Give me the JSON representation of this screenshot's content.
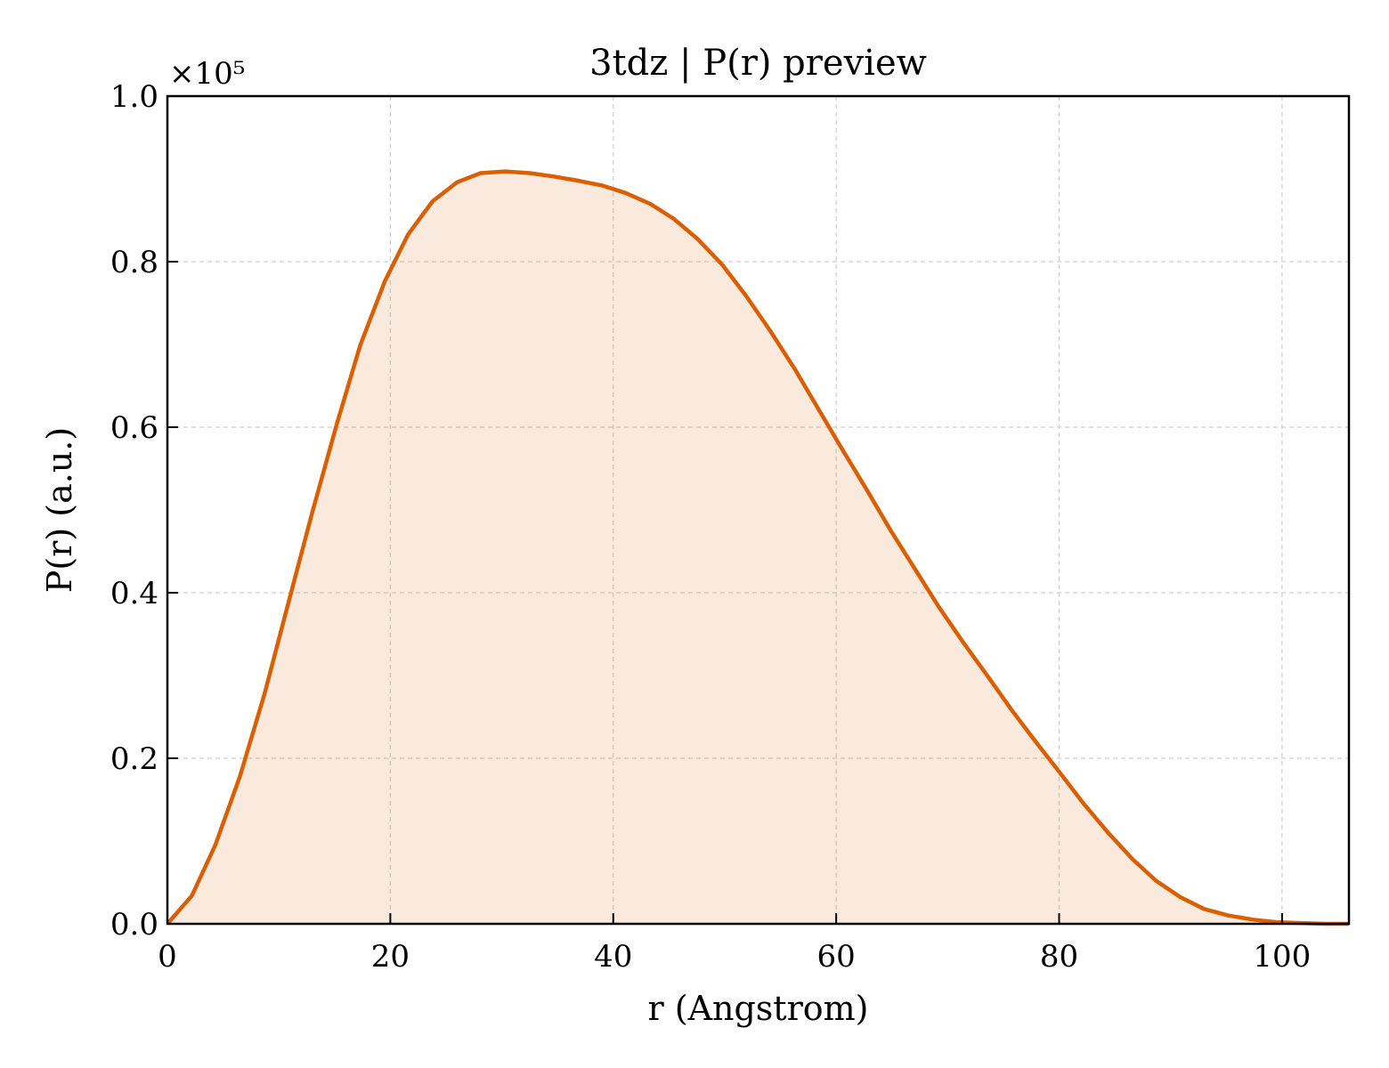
{
  "chart_data": {
    "type": "area",
    "title": "3tdz | P(r) preview",
    "xlabel": "r (Angstrom)",
    "ylabel": "P(r) (a.u.)",
    "y_offset_label": "×10⁵",
    "xlim": [
      0,
      106
    ],
    "ylim": [
      0,
      1.0
    ],
    "xticks": [
      0,
      20,
      40,
      60,
      80,
      100
    ],
    "xtick_labels": [
      "0",
      "20",
      "40",
      "60",
      "80",
      "100"
    ],
    "yticks": [
      0.0,
      0.2,
      0.4,
      0.6,
      0.8,
      1.0
    ],
    "ytick_labels": [
      "0.0",
      "0.2",
      "0.4",
      "0.6",
      "0.8",
      "1.0"
    ],
    "grid": true,
    "colors": {
      "line": "#d95f02",
      "fill": "#d95f02",
      "fill_opacity": 0.13,
      "axes": "#000000",
      "grid": "#cfcfcf"
    },
    "series": [
      {
        "x": [
          0,
          2.2,
          4.3,
          6.5,
          8.7,
          10.8,
          13.0,
          15.2,
          17.3,
          19.5,
          21.6,
          23.8,
          26.0,
          28.1,
          30.3,
          32.5,
          34.6,
          36.8,
          39.0,
          41.1,
          43.3,
          45.4,
          47.6,
          49.8,
          51.9,
          54.1,
          56.3,
          58.4,
          60.6,
          62.8,
          64.9,
          67.1,
          69.2,
          71.4,
          73.6,
          75.7,
          77.9,
          80.1,
          82.2,
          84.4,
          86.6,
          88.7,
          90.9,
          93.0,
          95.2,
          97.4,
          99.5,
          101.7,
          103.9,
          106.0
        ],
        "y": [
          0.0,
          0.034,
          0.095,
          0.178,
          0.277,
          0.385,
          0.497,
          0.604,
          0.699,
          0.776,
          0.833,
          0.873,
          0.896,
          0.907,
          0.909,
          0.907,
          0.903,
          0.898,
          0.892,
          0.883,
          0.87,
          0.852,
          0.827,
          0.796,
          0.759,
          0.716,
          0.67,
          0.622,
          0.572,
          0.523,
          0.475,
          0.428,
          0.383,
          0.34,
          0.299,
          0.259,
          0.22,
          0.182,
          0.145,
          0.11,
          0.078,
          0.052,
          0.032,
          0.018,
          0.01,
          0.005,
          0.002,
          0.001,
          0.0,
          0.0
        ]
      }
    ]
  }
}
